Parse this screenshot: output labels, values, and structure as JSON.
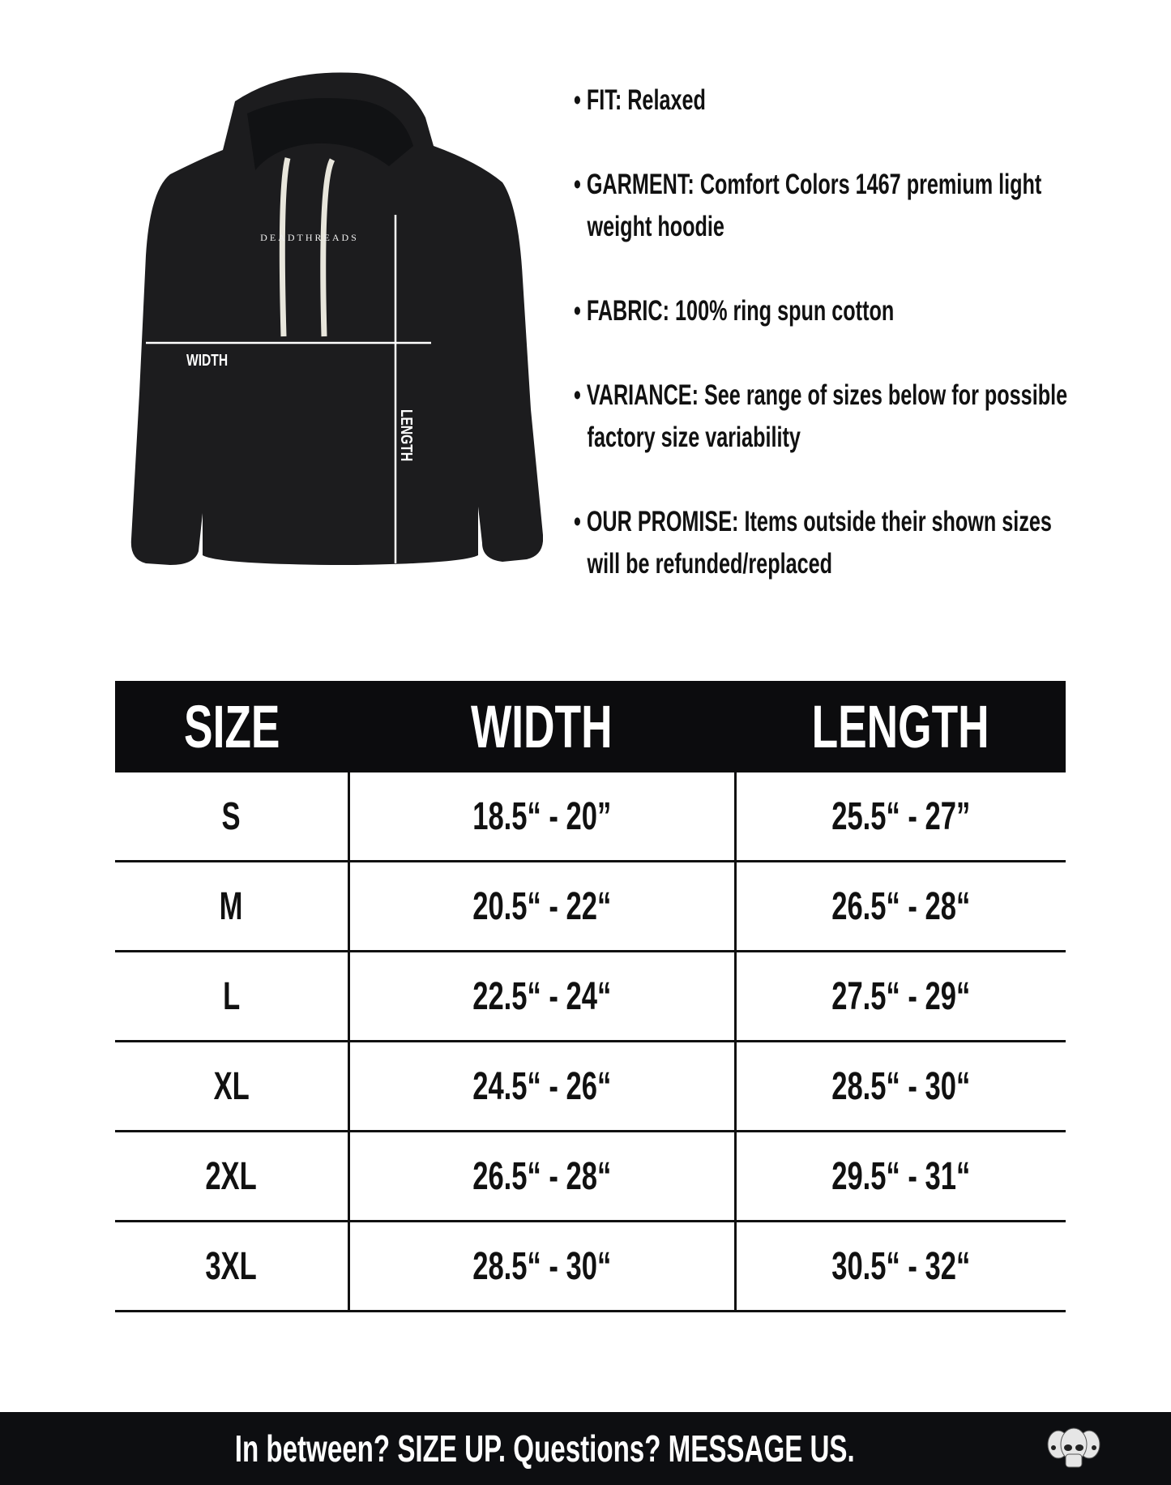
{
  "product_image": {
    "brand_print": "DEADTHREADS",
    "width_label": "WIDTH",
    "length_label": "LENGTH",
    "garment_color": "#1c1c1e",
    "drawstring_color": "#e8e6dc"
  },
  "specs": [
    {
      "label": "FIT:",
      "lines": [
        "Relaxed"
      ]
    },
    {
      "label": "GARMENT:",
      "lines": [
        "Comfort Colors 1467 premium light",
        "weight hoodie"
      ]
    },
    {
      "label": "FABRIC:",
      "lines": [
        "100% ring spun cotton"
      ]
    },
    {
      "label": "VARIANCE:",
      "lines": [
        "See range of sizes below for possible",
        "factory size variability"
      ]
    },
    {
      "label": "OUR PROMISE:",
      "lines": [
        "Items outside their shown sizes",
        "will be refunded/replaced"
      ]
    }
  ],
  "size_table": {
    "headers": [
      "SIZE",
      "WIDTH",
      "LENGTH"
    ],
    "rows": [
      [
        "S",
        "18.5“ - 20”",
        "25.5“ - 27”"
      ],
      [
        "M",
        "20.5“ - 22“",
        "26.5“ - 28“"
      ],
      [
        "L",
        "22.5“ - 24“",
        "27.5“ - 29“"
      ],
      [
        "XL",
        "24.5“ - 26“",
        "28.5“ - 30“"
      ],
      [
        "2XL",
        "26.5“ - 28“",
        "29.5“ - 31“"
      ],
      [
        "3XL",
        "28.5“ - 30“",
        "30.5“ - 32“"
      ]
    ]
  },
  "footer": {
    "text": "In between? SIZE UP. Questions? MESSAGE US.",
    "logo_icon": "three-skulls-icon",
    "background": "#0d0e11"
  }
}
